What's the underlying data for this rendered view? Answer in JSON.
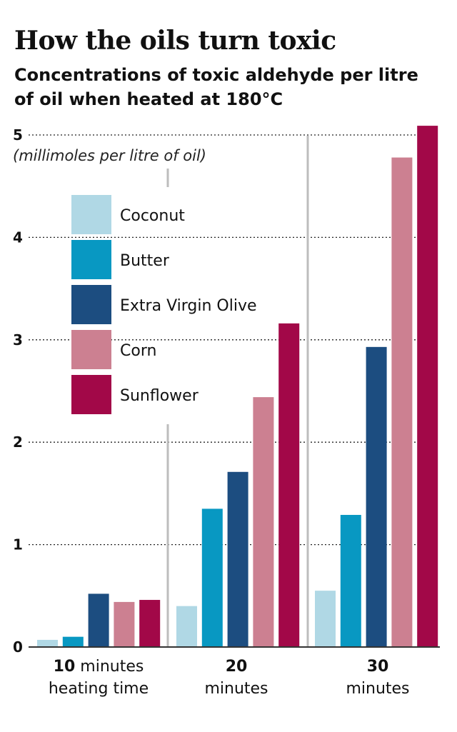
{
  "title": "How the oils turn toxic",
  "subtitle": "Concentrations of toxic aldehyde per litre of oil when heated at 180°C",
  "chart_data": {
    "type": "bar",
    "unit_label": "(millimoles per litre of oil)",
    "categories": [
      {
        "bold": "10",
        "rest": "minutes",
        "line2": "heating time"
      },
      {
        "bold": "20",
        "rest": "",
        "line2": "minutes"
      },
      {
        "bold": "30",
        "rest": "",
        "line2": "minutes"
      }
    ],
    "series": [
      {
        "name": "Coconut",
        "color": "#b0d8e5",
        "values": [
          0.07,
          0.4,
          0.55
        ]
      },
      {
        "name": "Butter",
        "color": "#0898c2",
        "values": [
          0.1,
          1.35,
          1.29
        ]
      },
      {
        "name": "Extra Virgin Olive",
        "color": "#1c4d80",
        "values": [
          0.52,
          1.71,
          2.93
        ]
      },
      {
        "name": "Corn",
        "color": "#cc8091",
        "values": [
          0.44,
          2.44,
          4.78
        ]
      },
      {
        "name": "Sunflower",
        "color": "#a20848",
        "values": [
          0.46,
          3.16,
          5.09
        ]
      }
    ],
    "yticks": [
      0,
      1,
      2,
      3,
      4,
      5
    ],
    "ylim": [
      0,
      5
    ],
    "grid": true,
    "legend": "top-left"
  }
}
